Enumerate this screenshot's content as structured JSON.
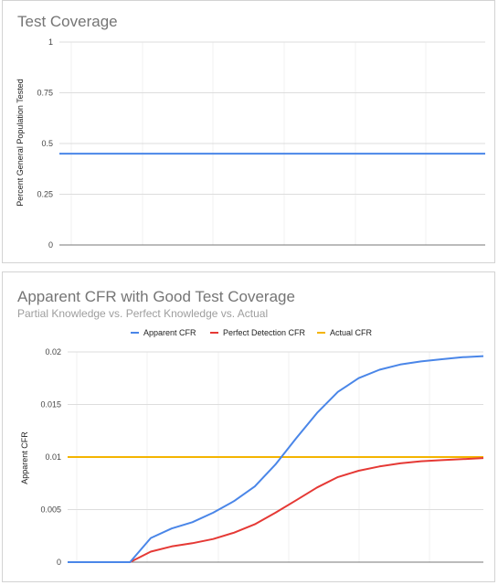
{
  "charts": {
    "coverage": {
      "title": "Test Coverage",
      "ylabel": "Percent General Population Tested"
    },
    "cfr": {
      "title": "Apparent CFR with Good Test Coverage",
      "subtitle": "Partial Knowledge vs. Perfect Knowledge vs. Actual",
      "ylabel": "Apparent CFR"
    }
  },
  "chart_data": [
    {
      "type": "line",
      "title": "Test Coverage",
      "xlabel": "",
      "ylabel": "Percent General Population Tested",
      "ylim": [
        0,
        1
      ],
      "yticks": [
        "0",
        "0.25",
        "0.5",
        "0.75",
        "1"
      ],
      "grid": true,
      "legend": "none",
      "x": [
        0,
        0.2,
        0.4,
        0.6,
        0.8,
        1
      ],
      "series": [
        {
          "color": "#4a86e8",
          "values": [
            0.45,
            0.45,
            0.45,
            0.45,
            0.45,
            0.45
          ]
        }
      ]
    },
    {
      "type": "line",
      "title": "Apparent CFR with Good Test Coverage",
      "subtitle": "Partial Knowledge vs. Perfect Knowledge vs. Actual",
      "xlabel": "",
      "ylabel": "Apparent CFR",
      "ylim": [
        0,
        0.02
      ],
      "yticks": [
        "0",
        "0.005",
        "0.01",
        "0.015",
        "0.02"
      ],
      "grid": true,
      "legend": "top",
      "x": [
        0,
        0.05,
        0.1,
        0.15,
        0.2,
        0.25,
        0.3,
        0.35,
        0.4,
        0.45,
        0.5,
        0.55,
        0.6,
        0.65,
        0.7,
        0.75,
        0.8,
        0.85,
        0.9,
        0.95,
        1
      ],
      "series": [
        {
          "name": "Apparent CFR",
          "color": "#4a86e8",
          "values": [
            0,
            0,
            0,
            0,
            0.0023,
            0.0032,
            0.0038,
            0.0047,
            0.0058,
            0.0072,
            0.0093,
            0.0118,
            0.0142,
            0.0162,
            0.0175,
            0.0183,
            0.0188,
            0.0191,
            0.0193,
            0.0195,
            0.0196
          ]
        },
        {
          "name": "Perfect Detection CFR",
          "color": "#e53935",
          "values": [
            0,
            0,
            0,
            0,
            0.001,
            0.0015,
            0.0018,
            0.0022,
            0.0028,
            0.0036,
            0.0047,
            0.0059,
            0.0071,
            0.0081,
            0.0087,
            0.0091,
            0.0094,
            0.0096,
            0.0097,
            0.0098,
            0.0099
          ]
        },
        {
          "name": "Actual CFR",
          "color": "#f4b400",
          "values": [
            0.01,
            0.01,
            0.01,
            0.01,
            0.01,
            0.01,
            0.01,
            0.01,
            0.01,
            0.01,
            0.01,
            0.01,
            0.01,
            0.01,
            0.01,
            0.01,
            0.01,
            0.01,
            0.01,
            0.01,
            0.01
          ]
        }
      ]
    }
  ]
}
